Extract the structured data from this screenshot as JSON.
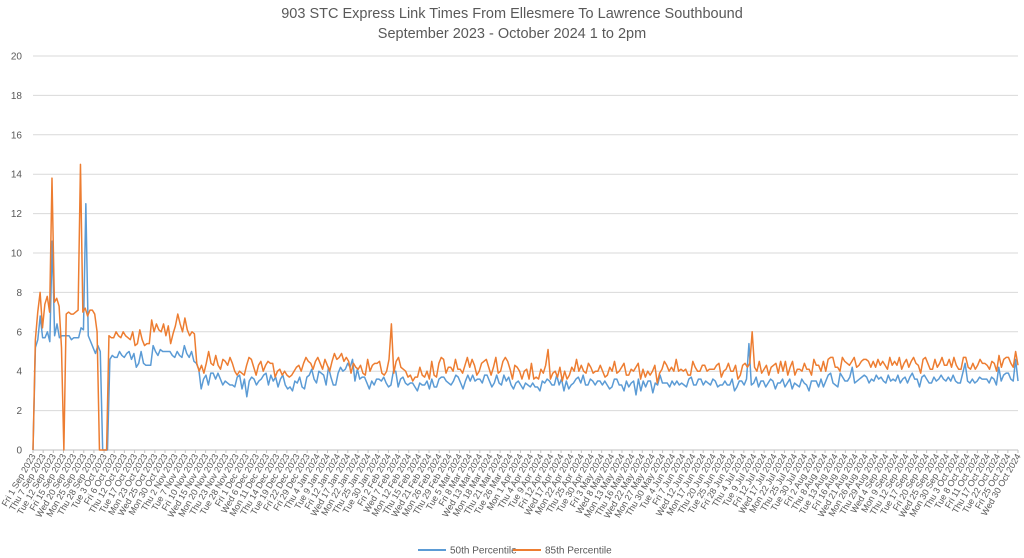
{
  "chart_data": {
    "type": "line",
    "title": "903 STC Express Link Times From Ellesmere To Lawrence Southbound",
    "subtitle": "September 2023 - October 2024 1 to 2pm",
    "xlabel": "",
    "ylabel": "",
    "ylim": [
      0,
      20
    ],
    "yticks": [
      0,
      2,
      4,
      6,
      8,
      10,
      12,
      14,
      16,
      18,
      20
    ],
    "grid": "horizontal",
    "legend": "bottom",
    "x_start": "2023-09-01",
    "x_end": "2024-10-31",
    "x_tick_labels": [
      "Fri 1 Sep 2023",
      "Thu 7 Sep 2023",
      "Tue 12 Sep 2023",
      "Fri 15 Sep 2023",
      "Wed 20 Sep 2023",
      "Mon 25 Sep 2023",
      "Thu 28 Sep 2023",
      "Tue 3 Oct 2023",
      "Fri 6 Oct 2023",
      "Thu 12 Oct 2023",
      "Tue 17 Oct 2023",
      "Mon 23 Oct 2023",
      "Wed 25 Oct 2023",
      "Mon 30 Oct 2023",
      "Thu 2 Nov 2023",
      "Tue 7 Nov 2023",
      "Fri 10 Nov 2023",
      "Wed 15 Nov 2023",
      "Mon 20 Nov 2023",
      "Thu 23 Nov 2023",
      "Tue 28 Nov 2023",
      "Fri 1 Dec 2023",
      "Wed 6 Dec 2023",
      "Mon 11 Dec 2023",
      "Thu 14 Dec 2023",
      "Tue 19 Dec 2023",
      "Fri 22 Dec 2023",
      "Fri 29 Dec 2023",
      "Thu 4 Jan 2024",
      "Tue 9 Jan 2024",
      "Fri 12 Jan 2024",
      "Wed 17 Jan 2024",
      "Mon 22 Jan 2024",
      "Thu 25 Jan 2024",
      "Tue 30 Jan 2024",
      "Fri 2 Feb 2024",
      "Wed 7 Feb 2024",
      "Mon 12 Feb 2024",
      "Thu 15 Feb 2024",
      "Wed 21 Feb 2024",
      "Mon 26 Feb 2024",
      "Thu 29 Feb 2024",
      "Tue 5 Mar 2024",
      "Fri 8 Mar 2024",
      "Wed 13 Mar 2024",
      "Mon 18 Mar 2024",
      "Thu 21 Mar 2024",
      "Tue 26 Mar 2024",
      "Mon 1 Apr 2024",
      "Thu 4 Apr 2024",
      "Tue 9 Apr 2024",
      "Fri 12 Apr 2024",
      "Wed 17 Apr 2024",
      "Mon 22 Apr 2024",
      "Thu 25 Apr 2024",
      "Tue 30 Apr 2024",
      "Fri 3 May 2024",
      "Wed 8 May 2024",
      "Mon 13 May 2024",
      "Thu 16 May 2024",
      "Wed 22 May 2024",
      "Mon 27 May 2024",
      "Thu 30 May 2024",
      "Tue 4 Jun 2024",
      "Fri 7 Jun 2024",
      "Wed 12 Jun 2024",
      "Mon 17 Jun 2024",
      "Thu 20 Jun 2024",
      "Tue 25 Jun 2024",
      "Fri 28 Jun 2024",
      "Thu 4 Jul 2024",
      "Tue 9 Jul 2024",
      "Fri 12 Jul 2024",
      "Wed 17 Jul 2024",
      "Mon 22 Jul 2024",
      "Thu 25 Jul 2024",
      "Tue 30 Jul 2024",
      "Fri 2 Aug 2024",
      "Thu 8 Aug 2024",
      "Tue 13 Aug 2024",
      "Fri 16 Aug 2024",
      "Wed 21 Aug 2024",
      "Mon 26 Aug 2024",
      "Thu 29 Aug 2024",
      "Wed 4 Sep 2024",
      "Mon 9 Sep 2024",
      "Thu 12 Sep 2024",
      "Tue 17 Sep 2024",
      "Fri 20 Sep 2024",
      "Wed 25 Sep 2024",
      "Mon 30 Sep 2024",
      "Thu 3 Oct 2024",
      "Tue 8 Oct 2024",
      "Fri 11 Oct 2024",
      "Thu 17 Oct 2024",
      "Tue 22 Oct 2024",
      "Fri 25 Oct 2024",
      "Wed 30 Oct 2024"
    ],
    "series": [
      {
        "name": "50th Percentile",
        "color": "#5b9bd5",
        "values": [
          0,
          5.2,
          5.6,
          6.8,
          5.7,
          5.7,
          6.0,
          5.5,
          10.6,
          5.8,
          6.4,
          5.7,
          5.8,
          5.8,
          5.8,
          5.8,
          5.6,
          5.7,
          5.7,
          5.7,
          6.2,
          6.1,
          12.5,
          5.8,
          5.5,
          5.2,
          4.9,
          5.3,
          5.0,
          0,
          0,
          0,
          4.6,
          4.8,
          4.7,
          4.7,
          5.0,
          4.8,
          4.7,
          4.9,
          5.0,
          4.6,
          4.9,
          4.2,
          4.4,
          5.0,
          4.4,
          4.3,
          4.3,
          4.3,
          5.3,
          5.0,
          4.8,
          5.1,
          5.0,
          5.0,
          5.0,
          5.0,
          4.8,
          4.7,
          5.0,
          4.8,
          4.7,
          5.3,
          4.9,
          4.7,
          5.0,
          4.5,
          4.4,
          4.1,
          3.1,
          3.6,
          3.8,
          3.3,
          3.9,
          3.9,
          3.6,
          3.9,
          3.6,
          3.3,
          3.5,
          3.4,
          3.3,
          3.3,
          3.2,
          3.7,
          3.8,
          3.1,
          3.6,
          2.7,
          3.5,
          3.7,
          3.6,
          3.3,
          3.5,
          3.6,
          3.8,
          3.9,
          3.3,
          3.8,
          3.5,
          3.7,
          3.2,
          3.6,
          3.8,
          3.3,
          3.1,
          3.2,
          3.0,
          3.5,
          3.4,
          3.7,
          3.2,
          3.1,
          3.7,
          3.8,
          4.1,
          3.6,
          3.4,
          4.0,
          3.9,
          3.8,
          3.3,
          4.2,
          3.7,
          3.3,
          3.3,
          3.9,
          4.2,
          4.0,
          4.1,
          4.4,
          4.2,
          4.6,
          3.5,
          4.1,
          3.6,
          3.7,
          3.7,
          3.4,
          3.1,
          3.5,
          3.3,
          3.6,
          3.6,
          3.5,
          3.7,
          3.4,
          3.2,
          3.3,
          4.0,
          4.0,
          3.2,
          3.6,
          3.7,
          3.4,
          3.3,
          3.4,
          3.4,
          3.2,
          3.0,
          3.4,
          3.3,
          3.3,
          3.5,
          3.1,
          3.6,
          3.2,
          3.2,
          3.6,
          3.7,
          3.7,
          3.5,
          3.4,
          3.3,
          3.5,
          3.8,
          3.7,
          3.4,
          3.1,
          3.5,
          3.8,
          3.5,
          3.8,
          3.5,
          3.6,
          3.6,
          3.4,
          3.8,
          3.8,
          3.5,
          3.2,
          3.4,
          3.8,
          3.4,
          3.3,
          3.8,
          3.5,
          3.7,
          3.3,
          3.1,
          3.4,
          3.5,
          3.3,
          3.1,
          3.4,
          3.3,
          3.2,
          3.4,
          3.2,
          3.2,
          3.0,
          3.5,
          3.4,
          3.6,
          3.5,
          3.3,
          3.3,
          3.8,
          3.3,
          3.6,
          3.0,
          3.5,
          3.1,
          3.3,
          3.4,
          3.6,
          3.7,
          3.4,
          3.8,
          3.3,
          3.3,
          3.6,
          3.5,
          3.3,
          3.5,
          3.5,
          3.3,
          3.5,
          3.3,
          3.1,
          3.2,
          3.6,
          3.6,
          3.3,
          3.3,
          3.0,
          3.5,
          3.2,
          3.4,
          3.5,
          2.8,
          3.6,
          3.0,
          3.5,
          3.2,
          3.5,
          3.5,
          2.9,
          3.4,
          3.3,
          3.8,
          3.4,
          3.4,
          3.4,
          3.2,
          3.5,
          3.3,
          3.5,
          3.3,
          3.4,
          3.3,
          3.2,
          3.6,
          3.7,
          3.3,
          3.3,
          3.6,
          3.6,
          3.3,
          3.5,
          3.4,
          3.3,
          3.6,
          3.5,
          3.2,
          3.3,
          3.3,
          3.5,
          3.3,
          3.3,
          3.6,
          3.0,
          3.2,
          3.5,
          3.5,
          3.3,
          3.6,
          5.4,
          3.3,
          3.4,
          3.7,
          3.2,
          3.5,
          3.5,
          3.2,
          3.4,
          3.6,
          3.5,
          3.1,
          3.4,
          3.4,
          3.6,
          3.2,
          3.4,
          3.6,
          3.1,
          3.4,
          3.3,
          3.2,
          3.6,
          3.4,
          3.3,
          3.0,
          3.5,
          3.5,
          3.5,
          3.2,
          3.6,
          3.2,
          3.5,
          3.8,
          3.9,
          3.4,
          3.3,
          3.2,
          3.9,
          3.7,
          3.5,
          3.5,
          3.7,
          4.2,
          3.4,
          3.5,
          3.6,
          3.7,
          3.8,
          3.7,
          3.4,
          3.6,
          3.5,
          3.8,
          3.6,
          3.7,
          3.5,
          3.4,
          3.8,
          3.5,
          3.6,
          3.5,
          3.8,
          3.4,
          3.6,
          3.7,
          3.4,
          3.7,
          3.9,
          3.6,
          3.6,
          3.2,
          3.7,
          3.8,
          3.6,
          3.4,
          3.4,
          3.7,
          3.5,
          3.6,
          3.8,
          3.6,
          3.5,
          3.7,
          3.5,
          3.8,
          3.5,
          3.4,
          3.4,
          3.9,
          4.4,
          3.5,
          3.4,
          3.6,
          3.4,
          3.5,
          3.7,
          3.6,
          3.6,
          3.6,
          3.4,
          3.7,
          3.6,
          3.3,
          4.2,
          3.5,
          3.8,
          3.9,
          3.9,
          3.6,
          3.5,
          4.6,
          3.5
        ]
      },
      {
        "name": "85th Percentile",
        "color": "#ed7d31",
        "values": [
          0,
          5.6,
          7.0,
          8.0,
          6.2,
          7.4,
          7.8,
          7.0,
          13.8,
          7.5,
          7.7,
          7.3,
          5.2,
          0,
          6.9,
          7.0,
          6.9,
          6.9,
          7.0,
          7.1,
          14.5,
          7.0,
          7.2,
          6.8,
          7.1,
          7.1,
          6.9,
          6.0,
          0,
          0,
          0,
          0,
          5.8,
          5.7,
          5.7,
          6.0,
          5.8,
          5.7,
          6.0,
          5.8,
          5.7,
          5.6,
          6.0,
          5.3,
          5.4,
          6.1,
          5.6,
          5.3,
          5.4,
          5.4,
          6.6,
          6.0,
          6.4,
          6.1,
          6.0,
          6.4,
          5.8,
          6.3,
          5.4,
          5.9,
          6.3,
          6.9,
          6.4,
          6.0,
          6.7,
          6.1,
          5.8,
          6.0,
          5.9,
          4.4,
          4.0,
          4.3,
          3.9,
          4.4,
          5.0,
          4.4,
          4.3,
          4.8,
          4.3,
          4.1,
          4.6,
          4.5,
          4.3,
          4.7,
          4.4,
          4.0,
          3.8,
          4.0,
          3.9,
          3.8,
          4.3,
          4.7,
          4.6,
          4.2,
          3.8,
          4.3,
          4.5,
          4.0,
          4.3,
          4.5,
          4.4,
          4.4,
          3.7,
          4.0,
          4.1,
          3.8,
          4.0,
          3.8,
          3.7,
          3.8,
          4.0,
          4.2,
          4.3,
          4.0,
          4.4,
          4.7,
          4.5,
          4.4,
          4.1,
          4.5,
          4.7,
          4.4,
          4.1,
          4.6,
          4.3,
          4.0,
          4.5,
          4.9,
          4.6,
          4.7,
          4.9,
          4.5,
          4.7,
          4.5,
          3.9,
          4.4,
          4.2,
          4.1,
          4.3,
          3.9,
          3.8,
          4.6,
          4.0,
          4.3,
          4.4,
          4.4,
          4.5,
          3.9,
          3.8,
          4.0,
          4.6,
          6.4,
          3.9,
          4.5,
          4.7,
          4.2,
          4.1,
          4.0,
          3.7,
          3.8,
          3.5,
          3.7,
          3.7,
          4.2,
          3.8,
          3.7,
          4.0,
          3.6,
          4.5,
          3.8,
          3.7,
          4.4,
          4.7,
          4.6,
          3.9,
          4.2,
          4.2,
          4.0,
          4.6,
          4.1,
          4.1,
          3.9,
          4.3,
          4.7,
          4.2,
          4.6,
          4.3,
          3.8,
          4.0,
          4.4,
          4.5,
          4.6,
          4.2,
          3.8,
          4.2,
          4.7,
          3.9,
          4.0,
          4.5,
          4.7,
          4.5,
          4.1,
          3.6,
          4.3,
          4.2,
          4.0,
          3.6,
          4.0,
          4.1,
          3.6,
          4.4,
          3.6,
          3.7,
          3.6,
          4.1,
          3.9,
          4.3,
          5.1,
          3.6,
          3.9,
          4.0,
          3.7,
          4.2,
          3.5,
          4.0,
          3.6,
          3.8,
          4.2,
          4.0,
          4.6,
          4.0,
          4.3,
          4.0,
          3.9,
          4.4,
          4.2,
          3.9,
          4.0,
          4.0,
          4.3,
          4.0,
          3.7,
          3.8,
          4.2,
          4.0,
          4.5,
          3.9,
          4.0,
          4.2,
          4.4,
          3.8,
          3.8,
          4.1,
          4.0,
          4.2,
          4.4,
          3.6,
          4.1,
          3.7,
          4.0,
          3.8,
          4.0,
          4.3,
          3.4,
          3.9,
          4.1,
          4.5,
          4.3,
          4.0,
          4.2,
          4.0,
          4.6,
          4.0,
          4.1,
          4.0,
          4.1,
          3.8,
          3.8,
          4.5,
          4.2,
          4.0,
          4.0,
          4.3,
          4.3,
          4.0,
          4.1,
          4.1,
          4.1,
          4.3,
          4.4,
          3.7,
          4.0,
          4.1,
          4.4,
          4.0,
          4.0,
          4.3,
          3.6,
          3.8,
          4.3,
          4.4,
          4.2,
          4.4,
          6.0,
          4.2,
          4.0,
          4.5,
          3.9,
          4.1,
          4.3,
          3.8,
          4.2,
          4.3,
          4.4,
          3.9,
          4.5,
          4.0,
          4.5,
          3.8,
          4.2,
          4.5,
          3.8,
          4.1,
          4.1,
          4.0,
          4.4,
          4.1,
          4.1,
          3.8,
          4.6,
          4.3,
          4.3,
          4.0,
          4.5,
          4.0,
          4.6,
          4.7,
          4.7,
          4.2,
          4.2,
          4.0,
          4.7,
          4.5,
          4.4,
          4.3,
          4.5,
          4.7,
          4.2,
          4.3,
          4.5,
          4.6,
          4.6,
          4.5,
          4.2,
          4.5,
          4.2,
          4.6,
          4.3,
          4.5,
          4.3,
          4.1,
          4.7,
          4.3,
          4.5,
          4.3,
          4.7,
          4.1,
          4.4,
          4.6,
          4.2,
          4.5,
          4.7,
          4.4,
          4.3,
          3.9,
          4.6,
          4.7,
          4.4,
          4.1,
          4.1,
          4.6,
          4.2,
          4.4,
          4.7,
          4.3,
          4.3,
          4.6,
          4.2,
          4.7,
          4.3,
          4.1,
          4.1,
          4.7,
          4.7,
          4.2,
          4.1,
          4.4,
          4.1,
          4.3,
          4.6,
          4.4,
          4.4,
          4.3,
          4.1,
          4.5,
          4.4,
          4.0,
          4.8,
          4.2,
          4.6,
          4.7,
          4.7,
          4.4,
          4.2,
          5.0,
          4.3
        ]
      }
    ]
  }
}
